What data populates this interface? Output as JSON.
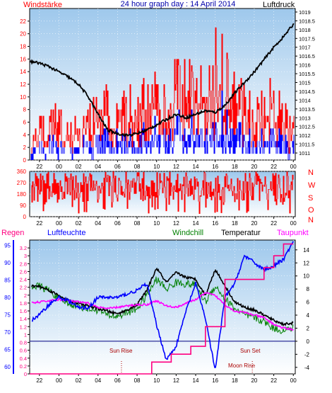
{
  "title": "24 hour graph day : 14 April 2014",
  "colors": {
    "plot_bg_top": "#9ec8ec",
    "plot_bg_bottom": "#ffffff",
    "frame": "#000000",
    "wind": "#ff0000",
    "gust_blue": "#0000ff",
    "pressure": "#000000",
    "direction": "#ff0000",
    "humidity": "#0000ff",
    "windchill": "#008000",
    "temperature": "#000000",
    "dewpoint": "#ff00ff",
    "rain": "#ff0080",
    "zero_line": "#000080",
    "sun_label": "#aa0000"
  },
  "x_ticks": [
    "22",
    "00",
    "02",
    "04",
    "06",
    "08",
    "10",
    "12",
    "14",
    "16",
    "18",
    "20",
    "22",
    "00"
  ],
  "chart_data": [
    {
      "type": "line",
      "name": "wind-pressure",
      "title": "24 hour graph day : 14 April 2014",
      "left_label": "Windstärke",
      "right_label": "Luftdruck",
      "left_ticks": [
        "0",
        "2",
        "4",
        "6",
        "8",
        "10",
        "12",
        "14",
        "16",
        "18",
        "20",
        "22"
      ],
      "right_ticks": [
        "1011",
        "1011.5",
        "1012",
        "1012.5",
        "1013",
        "1013.5",
        "1014",
        "1014.5",
        "1015",
        "1015.5",
        "1016",
        "1016.5",
        "1017",
        "1017.5",
        "1018",
        "1018.5",
        "1019"
      ],
      "left_range": [
        0,
        24
      ],
      "right_range": [
        1010.6,
        1019.2
      ],
      "x_range_hours": [
        -3,
        24.2
      ],
      "pressure": [
        [
          -3,
          1016.2
        ],
        [
          -2,
          1016.1
        ],
        [
          -1,
          1015.9
        ],
        [
          0,
          1015.6
        ],
        [
          1,
          1015.3
        ],
        [
          2,
          1014.9
        ],
        [
          3,
          1014.2
        ],
        [
          4,
          1013.2
        ],
        [
          5,
          1012.3
        ],
        [
          6,
          1012.1
        ],
        [
          7,
          1012.0
        ],
        [
          8,
          1012.1
        ],
        [
          9,
          1012.3
        ],
        [
          10,
          1012.6
        ],
        [
          11,
          1012.9
        ],
        [
          12,
          1013.2
        ],
        [
          13,
          1013.0
        ],
        [
          14,
          1013.2
        ],
        [
          15,
          1013.4
        ],
        [
          16,
          1013.3
        ],
        [
          17,
          1013.7
        ],
        [
          18,
          1014.4
        ],
        [
          19,
          1015.0
        ],
        [
          20,
          1015.6
        ],
        [
          21,
          1016.3
        ],
        [
          22,
          1017.0
        ],
        [
          23,
          1017.6
        ],
        [
          24,
          1018.3
        ]
      ],
      "wind_max_envelope": [
        [
          -3,
          2
        ],
        [
          -2,
          8
        ],
        [
          -1,
          12
        ],
        [
          0,
          9
        ],
        [
          1,
          6
        ],
        [
          2,
          10
        ],
        [
          3,
          8
        ],
        [
          4,
          14
        ],
        [
          5,
          12
        ],
        [
          6,
          10
        ],
        [
          7,
          12
        ],
        [
          8,
          12
        ],
        [
          9,
          14
        ],
        [
          10,
          16
        ],
        [
          11,
          14
        ],
        [
          12,
          20
        ],
        [
          13,
          18
        ],
        [
          14,
          14
        ],
        [
          15,
          19
        ],
        [
          16,
          22
        ],
        [
          17,
          24
        ],
        [
          18,
          16
        ],
        [
          19,
          12
        ],
        [
          20,
          10
        ],
        [
          21,
          12
        ],
        [
          22,
          14
        ],
        [
          23,
          10
        ],
        [
          24,
          7
        ]
      ]
    },
    {
      "type": "scatter",
      "name": "wind-direction",
      "left_ticks": [
        "0",
        "90",
        "180",
        "270",
        "360"
      ],
      "right_labels": [
        "N",
        "W",
        "S",
        "O",
        "N"
      ],
      "y_range": [
        0,
        360
      ]
    },
    {
      "type": "line",
      "name": "temperature-humidity",
      "series_labels": [
        "Regen",
        "Luftfeuchte",
        "Windchill",
        "Temperatur",
        "Taupunkt"
      ],
      "rain_ticks": [
        "0",
        "0.2",
        "0.4",
        "0.6",
        "0.8",
        "1",
        "1.2",
        "1.4",
        "1.6",
        "1.8",
        "2",
        "2.2",
        "2.4",
        "2.6",
        "2.8",
        "3",
        "3.2"
      ],
      "humidity_ticks": [
        "60",
        "65",
        "70",
        "75",
        "80",
        "85",
        "90",
        "95"
      ],
      "temp_ticks": [
        "-4",
        "-2",
        "0",
        "2",
        "4",
        "6",
        "8",
        "10",
        "12",
        "14"
      ],
      "temp_range": [
        -5,
        15.5
      ],
      "humidity_range": [
        58,
        96.5
      ],
      "rain_range": [
        0,
        3.4
      ],
      "annotations": [
        "Sun Rise",
        "Sun Set",
        "Moon Rise"
      ],
      "temperature": [
        [
          -3,
          8.5
        ],
        [
          -2,
          8.4
        ],
        [
          -1,
          7.8
        ],
        [
          0,
          7.0
        ],
        [
          1,
          6.2
        ],
        [
          2,
          5.8
        ],
        [
          3,
          5.4
        ],
        [
          4,
          5.0
        ],
        [
          5,
          4.6
        ],
        [
          6,
          4.2
        ],
        [
          7,
          4.8
        ],
        [
          8,
          5.6
        ],
        [
          9,
          7.8
        ],
        [
          10,
          11.2
        ],
        [
          11,
          9.0
        ],
        [
          12,
          10.5
        ],
        [
          13,
          9.8
        ],
        [
          14,
          9.5
        ],
        [
          15,
          7.0
        ],
        [
          16,
          11.0
        ],
        [
          17,
          8.5
        ],
        [
          18,
          6.0
        ],
        [
          19,
          5.2
        ],
        [
          20,
          4.8
        ],
        [
          21,
          4.0
        ],
        [
          22,
          3.2
        ],
        [
          23,
          2.6
        ],
        [
          24,
          2.8
        ]
      ],
      "windchill": [
        [
          -3,
          8.5
        ],
        [
          -2,
          8.4
        ],
        [
          -1,
          7.8
        ],
        [
          0,
          6.5
        ],
        [
          1,
          5.8
        ],
        [
          2,
          5.4
        ],
        [
          3,
          5.0
        ],
        [
          4,
          4.8
        ],
        [
          5,
          4.0
        ],
        [
          6,
          3.8
        ],
        [
          7,
          4.4
        ],
        [
          8,
          5.0
        ],
        [
          9,
          7.0
        ],
        [
          10,
          9.5
        ],
        [
          11,
          8.0
        ],
        [
          12,
          9.0
        ],
        [
          13,
          8.8
        ],
        [
          14,
          8.6
        ],
        [
          15,
          6.0
        ],
        [
          16,
          8.5
        ],
        [
          17,
          6.5
        ],
        [
          18,
          5.0
        ],
        [
          19,
          4.0
        ],
        [
          20,
          3.6
        ],
        [
          21,
          3.0
        ],
        [
          22,
          2.0
        ],
        [
          23,
          1.6
        ],
        [
          24,
          2.0
        ]
      ],
      "dewpoint": [
        [
          -3,
          5.8
        ],
        [
          -2,
          6.0
        ],
        [
          -1,
          6.2
        ],
        [
          0,
          6.4
        ],
        [
          1,
          6.2
        ],
        [
          2,
          6.0
        ],
        [
          3,
          5.8
        ],
        [
          4,
          5.2
        ],
        [
          5,
          5.0
        ],
        [
          6,
          5.2
        ],
        [
          7,
          5.4
        ],
        [
          8,
          5.6
        ],
        [
          9,
          5.6
        ],
        [
          10,
          6.2
        ],
        [
          11,
          5.4
        ],
        [
          12,
          5.2
        ],
        [
          13,
          5.8
        ],
        [
          14,
          6.4
        ],
        [
          15,
          7.4
        ],
        [
          16,
          7.0
        ],
        [
          17,
          5.6
        ],
        [
          18,
          4.6
        ],
        [
          19,
          4.4
        ],
        [
          20,
          4.0
        ],
        [
          21,
          3.6
        ],
        [
          22,
          2.6
        ],
        [
          23,
          2.0
        ],
        [
          24,
          1.8
        ]
      ],
      "humidity": [
        [
          -3,
          73
        ],
        [
          -2,
          75
        ],
        [
          -1,
          78
        ],
        [
          0,
          80
        ],
        [
          1,
          79
        ],
        [
          2,
          77
        ],
        [
          3,
          77
        ],
        [
          4,
          80
        ],
        [
          5,
          80
        ],
        [
          6,
          80
        ],
        [
          7,
          81
        ],
        [
          8,
          82
        ],
        [
          9,
          84
        ],
        [
          10,
          72
        ],
        [
          11,
          62
        ],
        [
          12,
          66
        ],
        [
          13,
          76
        ],
        [
          14,
          84
        ],
        [
          15,
          74
        ],
        [
          16,
          59
        ],
        [
          17,
          80
        ],
        [
          18,
          84
        ],
        [
          19,
          92
        ],
        [
          20,
          90
        ],
        [
          21,
          88
        ],
        [
          22,
          89
        ],
        [
          23,
          91
        ],
        [
          24,
          96
        ]
      ],
      "rain": [
        [
          -3,
          0
        ],
        [
          9.5,
          0
        ],
        [
          9.5,
          0.3
        ],
        [
          11.5,
          0.3
        ],
        [
          11.5,
          0.5
        ],
        [
          13.5,
          0.5
        ],
        [
          13.5,
          0.7
        ],
        [
          15,
          0.7
        ],
        [
          15,
          1.2
        ],
        [
          17,
          1.2
        ],
        [
          17,
          2.4
        ],
        [
          21,
          2.4
        ],
        [
          21,
          2.7
        ],
        [
          22,
          2.7
        ],
        [
          22,
          3.0
        ],
        [
          23,
          3.0
        ],
        [
          23,
          3.3
        ],
        [
          24,
          3.3
        ]
      ]
    }
  ]
}
